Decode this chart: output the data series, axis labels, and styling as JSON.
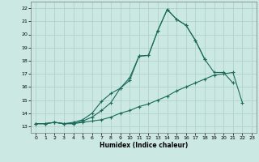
{
  "xlabel": "Humidex (Indice chaleur)",
  "background_color": "#cce8e3",
  "grid_color": "#aacfc8",
  "line_color": "#1a6b5a",
  "xlim": [
    -0.5,
    23.5
  ],
  "ylim": [
    12.5,
    22.5
  ],
  "xticks": [
    0,
    1,
    2,
    3,
    4,
    5,
    6,
    7,
    8,
    9,
    10,
    11,
    12,
    13,
    14,
    15,
    16,
    17,
    18,
    19,
    20,
    21,
    22,
    23
  ],
  "yticks": [
    13,
    14,
    15,
    16,
    17,
    18,
    19,
    20,
    21,
    22
  ],
  "line1_x": [
    0,
    1,
    2,
    3,
    4,
    5,
    6,
    7,
    8,
    9,
    10,
    11,
    12,
    13,
    14,
    15,
    16,
    17,
    18,
    19,
    20,
    21,
    22
  ],
  "line1_y": [
    13.2,
    13.2,
    13.3,
    13.2,
    13.2,
    13.3,
    13.4,
    13.5,
    13.7,
    14.0,
    14.2,
    14.5,
    14.7,
    15.0,
    15.3,
    15.7,
    16.0,
    16.3,
    16.6,
    16.9,
    17.0,
    17.1,
    14.8
  ],
  "line2_x": [
    0,
    1,
    2,
    3,
    4,
    5,
    6,
    7,
    8,
    9,
    10,
    11,
    12,
    13,
    14,
    15,
    16,
    17,
    18,
    19,
    20,
    21,
    22
  ],
  "line2_y": [
    13.2,
    13.2,
    13.3,
    13.2,
    13.2,
    13.4,
    13.7,
    14.2,
    14.8,
    15.9,
    16.7,
    18.35,
    18.4,
    20.3,
    21.9,
    21.15,
    20.7,
    19.55,
    18.1,
    17.1,
    17.1,
    16.3,
    null
  ],
  "line3_x": [
    0,
    1,
    2,
    3,
    4,
    5,
    6,
    7,
    8,
    9,
    10,
    11,
    12,
    13,
    14,
    15,
    16,
    17,
    18,
    19,
    20,
    21,
    22
  ],
  "line3_y": [
    13.2,
    13.2,
    13.3,
    13.2,
    13.3,
    13.5,
    14.0,
    14.9,
    15.5,
    15.9,
    16.5,
    18.35,
    18.4,
    20.3,
    21.9,
    21.15,
    20.7,
    19.55,
    18.1,
    null,
    null,
    null,
    null
  ]
}
